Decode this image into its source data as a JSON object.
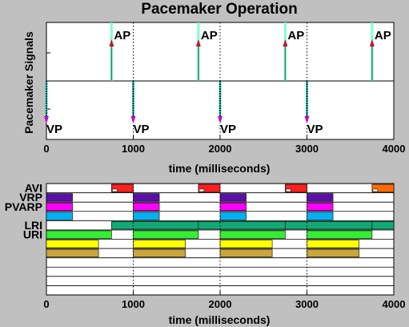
{
  "chart_data": [
    {
      "type": "event",
      "title": "Pacemaker Operation",
      "ylabel": "Pacemaker Signals",
      "xlabel": "time (milliseconds)",
      "xlim": [
        0,
        4000
      ],
      "xticks": [
        0,
        1000,
        2000,
        3000,
        4000
      ],
      "grid_x": [
        1000,
        2000,
        3000
      ],
      "series": [
        {
          "name": "AP",
          "marker": "up-arrow",
          "color": "#c8102e",
          "line_color": "#2e8b57",
          "highlight": "#7fffd4",
          "times": [
            750,
            1750,
            2750,
            3750
          ]
        },
        {
          "name": "VP",
          "marker": "down-arrow",
          "color": "#cc00cc",
          "line_color": "#000000",
          "highlight": "#40e0d0",
          "times": [
            0,
            1000,
            2000,
            3000
          ]
        }
      ]
    },
    {
      "type": "timeline",
      "xlabel": "time (milliseconds)",
      "xlim": [
        0,
        4000
      ],
      "xticks": [
        0,
        1000,
        2000,
        3000,
        4000
      ],
      "grid_x": [
        1000,
        2000,
        3000
      ],
      "rows": [
        {
          "label": "AVI",
          "bars": [
            {
              "start": 750,
              "end": 1000,
              "color": "#ff2020"
            },
            {
              "start": 1750,
              "end": 2000,
              "color": "#ff2020"
            },
            {
              "start": 2750,
              "end": 3000,
              "color": "#ff2020"
            },
            {
              "start": 3750,
              "end": 4000,
              "color": "#ff6a00"
            }
          ]
        },
        {
          "label": "VRP",
          "bars": [
            {
              "start": 0,
              "end": 300,
              "color": "#5b0fa8"
            },
            {
              "start": 1000,
              "end": 1300,
              "color": "#5b0fa8"
            },
            {
              "start": 2000,
              "end": 2300,
              "color": "#5b0fa8"
            },
            {
              "start": 3000,
              "end": 3300,
              "color": "#5b0fa8"
            }
          ]
        },
        {
          "label": "PVARP",
          "bars": [
            {
              "start": 0,
              "end": 300,
              "color": "#ff00ff"
            },
            {
              "start": 1000,
              "end": 1300,
              "color": "#ff00ff"
            },
            {
              "start": 2000,
              "end": 2300,
              "color": "#ff00ff"
            },
            {
              "start": 3000,
              "end": 3300,
              "color": "#ff00ff"
            }
          ]
        },
        {
          "label": "",
          "bars": [
            {
              "start": 0,
              "end": 300,
              "color": "#00b0f0"
            },
            {
              "start": 1000,
              "end": 1300,
              "color": "#00b0f0"
            },
            {
              "start": 2000,
              "end": 2300,
              "color": "#00b0f0"
            },
            {
              "start": 3000,
              "end": 3300,
              "color": "#00b0f0"
            }
          ]
        },
        {
          "label": "LRI",
          "bars": [
            {
              "start": 750,
              "end": 1750,
              "color": "#11aa77"
            },
            {
              "start": 1750,
              "end": 2750,
              "color": "#11aa77"
            },
            {
              "start": 2750,
              "end": 3750,
              "color": "#11aa77"
            },
            {
              "start": 3750,
              "end": 4000,
              "color": "#11aa77"
            }
          ]
        },
        {
          "label": "URI",
          "bars": [
            {
              "start": 0,
              "end": 750,
              "color": "#33ee33"
            },
            {
              "start": 1000,
              "end": 1750,
              "color": "#33ee33"
            },
            {
              "start": 2000,
              "end": 2750,
              "color": "#33ee33"
            },
            {
              "start": 3000,
              "end": 3750,
              "color": "#33ee33"
            }
          ]
        },
        {
          "label": "",
          "bars": [
            {
              "start": 0,
              "end": 600,
              "color": "#ffff00"
            },
            {
              "start": 1000,
              "end": 1600,
              "color": "#ffff00"
            },
            {
              "start": 2000,
              "end": 2600,
              "color": "#ffff00"
            },
            {
              "start": 3000,
              "end": 3600,
              "color": "#ffff00"
            }
          ]
        },
        {
          "label": "",
          "bars": [
            {
              "start": 0,
              "end": 600,
              "color": "#c8a63c"
            },
            {
              "start": 1000,
              "end": 1600,
              "color": "#c8a63c"
            },
            {
              "start": 2000,
              "end": 2600,
              "color": "#c8a63c"
            },
            {
              "start": 3000,
              "end": 3600,
              "color": "#c8a63c"
            }
          ]
        },
        {
          "label": "",
          "bars": []
        },
        {
          "label": "",
          "bars": []
        },
        {
          "label": "",
          "bars": []
        },
        {
          "label": "",
          "bars": []
        }
      ]
    }
  ]
}
